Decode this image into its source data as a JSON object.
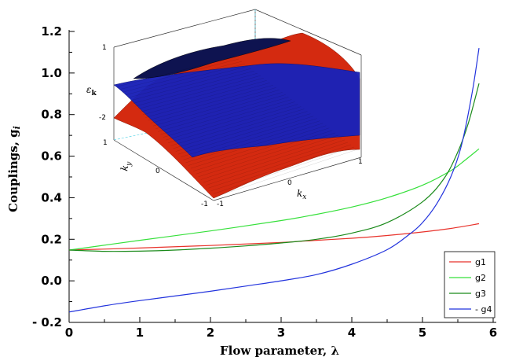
{
  "chart_data": [
    {
      "type": "line",
      "xlabel": "Flow parameter, λ",
      "ylabel": "Couplings, g",
      "ylabel_sub": "i",
      "xlim": [
        0,
        6
      ],
      "ylim": [
        -0.2,
        1.2
      ],
      "x_ticks": [
        "0",
        "1",
        "2",
        "3",
        "4",
        "5",
        "6"
      ],
      "y_ticks": [
        "- 0.2",
        "0.0",
        "0.2",
        "0.4",
        "0.6",
        "0.8",
        "1.0",
        "1.2"
      ],
      "legend_position": "bottom-right",
      "series": [
        {
          "name": "g1",
          "color": "#e8322b",
          "x": [
            0,
            1,
            2,
            3,
            3.5,
            4,
            4.5,
            5,
            5.4,
            5.8
          ],
          "y": [
            0.148,
            0.158,
            0.17,
            0.185,
            0.195,
            0.205,
            0.218,
            0.235,
            0.252,
            0.275
          ]
        },
        {
          "name": "g2",
          "color": "#35e03a",
          "x": [
            0,
            1,
            2,
            3,
            3.5,
            4,
            4.5,
            5,
            5.4,
            5.6,
            5.8
          ],
          "y": [
            0.148,
            0.195,
            0.24,
            0.29,
            0.32,
            0.355,
            0.4,
            0.46,
            0.53,
            0.58,
            0.635
          ]
        },
        {
          "name": "g3",
          "color": "#1a8a1a",
          "x": [
            0,
            0.5,
            1,
            1.5,
            2,
            2.5,
            3,
            3.5,
            4,
            4.5,
            5,
            5.3,
            5.5,
            5.65,
            5.8
          ],
          "y": [
            0.148,
            0.142,
            0.143,
            0.148,
            0.157,
            0.168,
            0.182,
            0.2,
            0.23,
            0.28,
            0.38,
            0.49,
            0.62,
            0.76,
            0.95
          ]
        },
        {
          "name": "- g4",
          "color": "#2233dd",
          "x": [
            0,
            0.5,
            1,
            1.5,
            2,
            2.5,
            3,
            3.5,
            4,
            4.5,
            4.8,
            5,
            5.2,
            5.4,
            5.55,
            5.7,
            5.8
          ],
          "y": [
            -0.15,
            -0.12,
            -0.095,
            -0.073,
            -0.05,
            -0.025,
            0.0,
            0.03,
            0.08,
            0.15,
            0.22,
            0.28,
            0.37,
            0.5,
            0.65,
            0.9,
            1.12
          ]
        }
      ]
    },
    {
      "type": "surface-3d",
      "zlabel": "ε",
      "zlabel_sub": "k",
      "xlabel": "k",
      "xlabel_sub": "x",
      "ylabel": "k",
      "ylabel_sub": "y",
      "z_ticks": [
        "1",
        "-2"
      ],
      "x_ticks": [
        "-1",
        "0",
        "1"
      ],
      "y_ticks": [
        "1",
        "0",
        "-1"
      ],
      "surface_colors": [
        "#d42a10",
        "#1a22b8"
      ]
    }
  ]
}
